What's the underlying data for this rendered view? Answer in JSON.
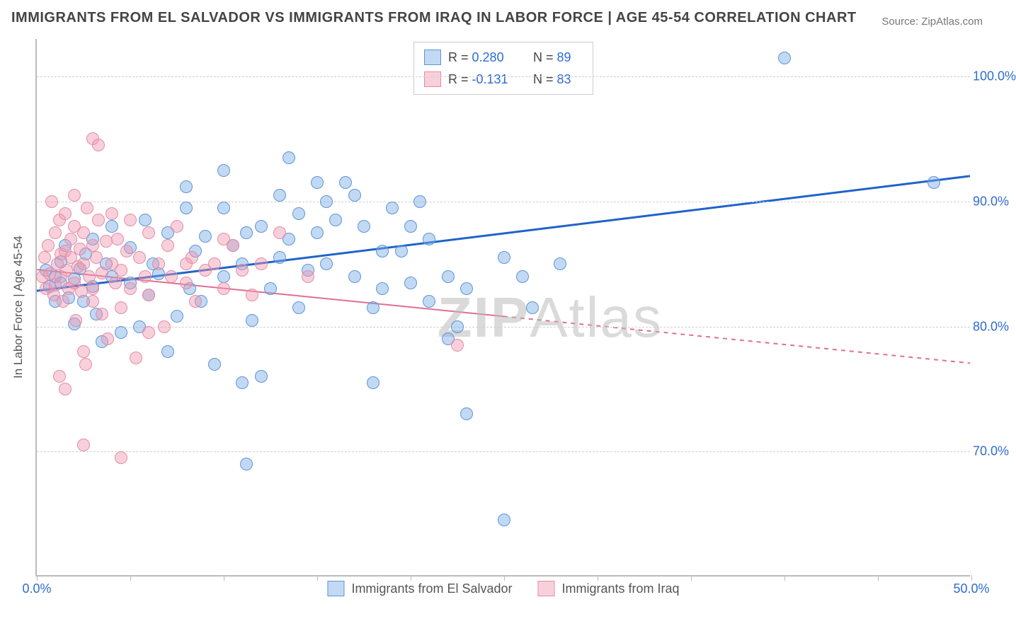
{
  "title": "IMMIGRANTS FROM EL SALVADOR VS IMMIGRANTS FROM IRAQ IN LABOR FORCE | AGE 45-54 CORRELATION CHART",
  "source_prefix": "Source: ",
  "source_name": "ZipAtlas.com",
  "watermark": {
    "bold": "ZIP",
    "thin": "Atlas"
  },
  "chart": {
    "type": "scatter",
    "y_axis_label": "In Labor Force | Age 45-54",
    "x_domain": [
      0,
      50
    ],
    "y_domain": [
      60,
      103
    ],
    "x_ticks": [
      0,
      50
    ],
    "x_tick_labels": [
      "0.0%",
      "50.0%"
    ],
    "x_minor_count": 9,
    "y_ticks": [
      70,
      80,
      90,
      100
    ],
    "y_tick_labels": [
      "70.0%",
      "80.0%",
      "90.0%",
      "100.0%"
    ],
    "background_color": "#ffffff",
    "grid_color": "#d0d0d0",
    "axis_color": "#bbbbbb",
    "tick_label_color": "#2f6cd1",
    "marker_radius": 9,
    "series": [
      {
        "id": "el_salvador",
        "label": "Immigrants from El Salvador",
        "fill": "rgba(120,170,230,0.45)",
        "stroke": "#5e95d6",
        "trend_color": "#1f63c9",
        "trend_width": 3,
        "trend_dash": "0",
        "r_value": "0.280",
        "n_value": "89",
        "trend": {
          "x1": 0,
          "y1": 82.8,
          "x2": 50,
          "y2": 92.0
        },
        "points": [
          [
            0.5,
            84.5
          ],
          [
            0.7,
            83.2
          ],
          [
            1.0,
            84.0
          ],
          [
            1.0,
            82.0
          ],
          [
            1.3,
            83.5
          ],
          [
            1.3,
            85.2
          ],
          [
            1.5,
            86.5
          ],
          [
            1.7,
            82.3
          ],
          [
            2.0,
            83.8
          ],
          [
            2.0,
            80.2
          ],
          [
            2.3,
            84.6
          ],
          [
            2.5,
            82.0
          ],
          [
            2.6,
            85.8
          ],
          [
            3.0,
            83.2
          ],
          [
            3.0,
            87.0
          ],
          [
            3.2,
            81.0
          ],
          [
            3.5,
            78.8
          ],
          [
            3.7,
            85.0
          ],
          [
            4.0,
            84.0
          ],
          [
            4.0,
            88.0
          ],
          [
            4.5,
            79.5
          ],
          [
            5.0,
            86.3
          ],
          [
            5.0,
            83.5
          ],
          [
            5.5,
            80.0
          ],
          [
            5.8,
            88.5
          ],
          [
            6.0,
            82.5
          ],
          [
            6.2,
            85.0
          ],
          [
            6.5,
            84.2
          ],
          [
            7.0,
            87.5
          ],
          [
            7.0,
            78.0
          ],
          [
            7.5,
            80.8
          ],
          [
            8.0,
            89.5
          ],
          [
            8.0,
            91.2
          ],
          [
            8.2,
            83.0
          ],
          [
            8.5,
            86.0
          ],
          [
            8.8,
            82.0
          ],
          [
            9.0,
            87.2
          ],
          [
            9.5,
            77.0
          ],
          [
            10.0,
            92.5
          ],
          [
            10.0,
            84.0
          ],
          [
            10.5,
            86.5
          ],
          [
            11.0,
            85.0
          ],
          [
            11.0,
            75.5
          ],
          [
            11.2,
            87.5
          ],
          [
            11.2,
            69.0
          ],
          [
            11.5,
            80.5
          ],
          [
            12.0,
            88.0
          ],
          [
            12.0,
            76.0
          ],
          [
            12.5,
            83.0
          ],
          [
            13.0,
            90.5
          ],
          [
            13.0,
            85.5
          ],
          [
            13.5,
            87.0
          ],
          [
            13.5,
            93.5
          ],
          [
            14.0,
            81.5
          ],
          [
            14.0,
            89.0
          ],
          [
            14.5,
            84.5
          ],
          [
            15.0,
            91.5
          ],
          [
            15.0,
            87.5
          ],
          [
            15.5,
            85.0
          ],
          [
            15.5,
            90.0
          ],
          [
            16.0,
            88.5
          ],
          [
            16.5,
            91.5
          ],
          [
            17.0,
            84.0
          ],
          [
            17.0,
            90.5
          ],
          [
            17.5,
            88.0
          ],
          [
            18.0,
            81.5
          ],
          [
            18.0,
            75.5
          ],
          [
            18.5,
            83.0
          ],
          [
            19.0,
            89.5
          ],
          [
            19.5,
            86.0
          ],
          [
            20.0,
            88.0
          ],
          [
            20.0,
            83.5
          ],
          [
            20.5,
            90.0
          ],
          [
            21.0,
            82.0
          ],
          [
            21.0,
            87.0
          ],
          [
            22.0,
            84.0
          ],
          [
            22.5,
            80.0
          ],
          [
            23.0,
            83.0
          ],
          [
            23.0,
            73.0
          ],
          [
            25.0,
            85.5
          ],
          [
            26.0,
            84.0
          ],
          [
            26.5,
            81.5
          ],
          [
            28.0,
            85.0
          ],
          [
            25.0,
            64.5
          ],
          [
            22.0,
            79.0
          ],
          [
            18.5,
            86.0
          ],
          [
            40.0,
            101.5
          ],
          [
            10.0,
            89.5
          ],
          [
            48.0,
            91.5
          ]
        ]
      },
      {
        "id": "iraq",
        "label": "Immigrants from Iraq",
        "fill": "rgba(240,150,175,0.45)",
        "stroke": "#e58ca6",
        "trend_color": "#e06f90",
        "trend_width": 2,
        "trend_solid_until": 25,
        "trend_dash": "6 6",
        "r_value": "-0.131",
        "n_value": "83",
        "trend": {
          "x1": 0,
          "y1": 84.5,
          "x2": 50,
          "y2": 77.0
        },
        "points": [
          [
            0.3,
            84.0
          ],
          [
            0.4,
            85.5
          ],
          [
            0.5,
            83.0
          ],
          [
            0.6,
            86.5
          ],
          [
            0.7,
            84.2
          ],
          [
            0.8,
            90.0
          ],
          [
            0.9,
            82.5
          ],
          [
            1.0,
            87.5
          ],
          [
            1.0,
            83.3
          ],
          [
            1.1,
            85.0
          ],
          [
            1.2,
            88.5
          ],
          [
            1.3,
            84.0
          ],
          [
            1.3,
            85.8
          ],
          [
            1.4,
            82.0
          ],
          [
            1.5,
            86.0
          ],
          [
            1.5,
            89.0
          ],
          [
            1.5,
            75.0
          ],
          [
            1.6,
            84.5
          ],
          [
            1.7,
            83.0
          ],
          [
            1.8,
            87.0
          ],
          [
            1.8,
            85.5
          ],
          [
            2.0,
            90.5
          ],
          [
            2.0,
            83.5
          ],
          [
            2.0,
            88.0
          ],
          [
            2.1,
            80.5
          ],
          [
            2.2,
            84.8
          ],
          [
            2.3,
            86.2
          ],
          [
            2.4,
            82.8
          ],
          [
            2.5,
            78.0
          ],
          [
            2.5,
            85.0
          ],
          [
            2.5,
            87.5
          ],
          [
            2.6,
            77.0
          ],
          [
            2.7,
            89.5
          ],
          [
            2.8,
            84.0
          ],
          [
            3.0,
            86.5
          ],
          [
            3.0,
            83.0
          ],
          [
            3.0,
            82.0
          ],
          [
            3.2,
            85.5
          ],
          [
            3.3,
            88.5
          ],
          [
            3.5,
            81.0
          ],
          [
            3.5,
            84.3
          ],
          [
            3.7,
            86.8
          ],
          [
            3.8,
            79.0
          ],
          [
            4.0,
            85.0
          ],
          [
            4.0,
            89.0
          ],
          [
            4.2,
            83.5
          ],
          [
            4.3,
            87.0
          ],
          [
            4.5,
            84.5
          ],
          [
            4.5,
            81.5
          ],
          [
            4.8,
            86.0
          ],
          [
            5.0,
            88.5
          ],
          [
            5.0,
            83.0
          ],
          [
            5.3,
            77.5
          ],
          [
            5.5,
            85.5
          ],
          [
            5.8,
            84.0
          ],
          [
            6.0,
            87.5
          ],
          [
            6.0,
            82.5
          ],
          [
            6.5,
            85.0
          ],
          [
            6.8,
            80.0
          ],
          [
            7.0,
            86.5
          ],
          [
            7.2,
            84.0
          ],
          [
            7.5,
            88.0
          ],
          [
            8.0,
            83.5
          ],
          [
            8.3,
            85.5
          ],
          [
            8.5,
            82.0
          ],
          [
            9.0,
            84.5
          ],
          [
            9.5,
            85.0
          ],
          [
            10.0,
            83.0
          ],
          [
            10.5,
            86.5
          ],
          [
            11.0,
            84.5
          ],
          [
            11.5,
            82.5
          ],
          [
            12.0,
            85.0
          ],
          [
            3.0,
            95.0
          ],
          [
            3.3,
            94.5
          ],
          [
            2.5,
            70.5
          ],
          [
            4.5,
            69.5
          ],
          [
            1.2,
            76.0
          ],
          [
            14.5,
            84.0
          ],
          [
            13.0,
            87.5
          ],
          [
            10.0,
            87.0
          ],
          [
            6.0,
            79.5
          ],
          [
            22.5,
            78.5
          ],
          [
            8.0,
            85.0
          ]
        ]
      }
    ]
  },
  "legend_top": {
    "R_label": "R =",
    "N_label": "N ="
  },
  "bottom_legend": true
}
